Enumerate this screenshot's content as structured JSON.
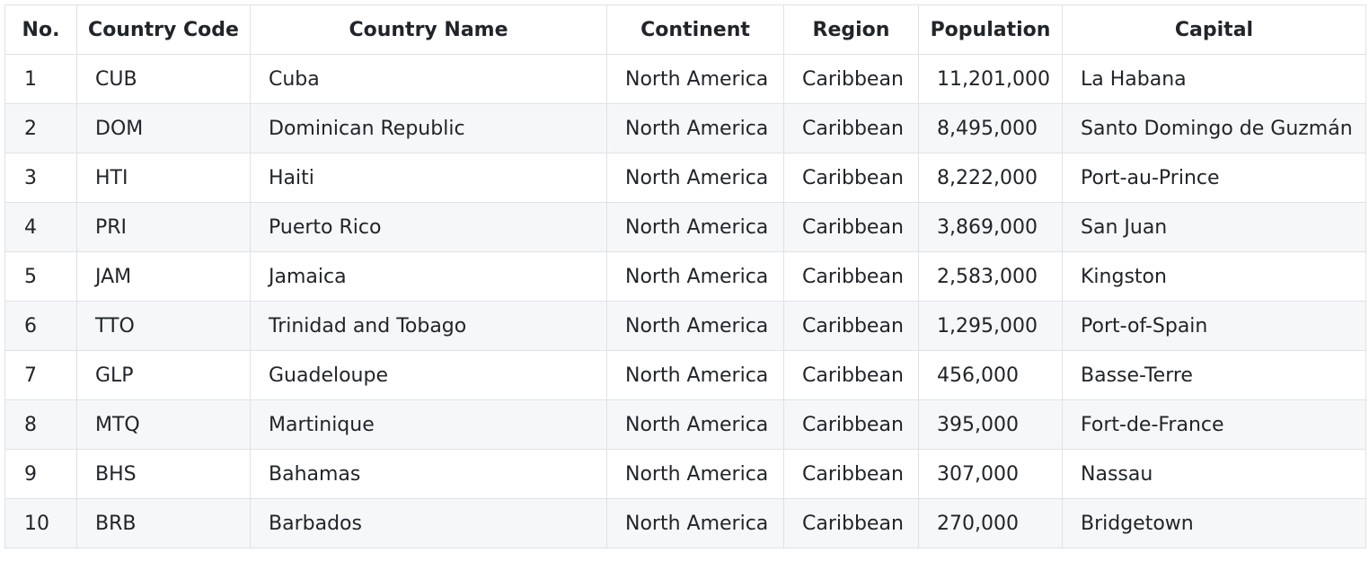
{
  "table": {
    "columns": [
      "No.",
      "Country Code",
      "Country Name",
      "Continent",
      "Region",
      "Population",
      "Capital"
    ],
    "rows": [
      [
        "1",
        "CUB",
        "Cuba",
        "North America",
        "Caribbean",
        "11,201,000",
        "La Habana"
      ],
      [
        "2",
        "DOM",
        "Dominican Republic",
        "North America",
        "Caribbean",
        "8,495,000",
        "Santo Domingo de Guzmán"
      ],
      [
        "3",
        "HTI",
        "Haiti",
        "North America",
        "Caribbean",
        "8,222,000",
        "Port-au-Prince"
      ],
      [
        "4",
        "PRI",
        "Puerto Rico",
        "North America",
        "Caribbean",
        "3,869,000",
        "San Juan"
      ],
      [
        "5",
        "JAM",
        "Jamaica",
        "North America",
        "Caribbean",
        "2,583,000",
        "Kingston"
      ],
      [
        "6",
        "TTO",
        "Trinidad and Tobago",
        "North America",
        "Caribbean",
        "1,295,000",
        "Port-of-Spain"
      ],
      [
        "7",
        "GLP",
        "Guadeloupe",
        "North America",
        "Caribbean",
        "456,000",
        "Basse-Terre"
      ],
      [
        "8",
        "MTQ",
        "Martinique",
        "North America",
        "Caribbean",
        "395,000",
        "Fort-de-France"
      ],
      [
        "9",
        "BHS",
        "Bahamas",
        "North America",
        "Caribbean",
        "307,000",
        "Nassau"
      ],
      [
        "10",
        "BRB",
        "Barbados",
        "North America",
        "Caribbean",
        "270,000",
        "Bridgetown"
      ]
    ]
  }
}
